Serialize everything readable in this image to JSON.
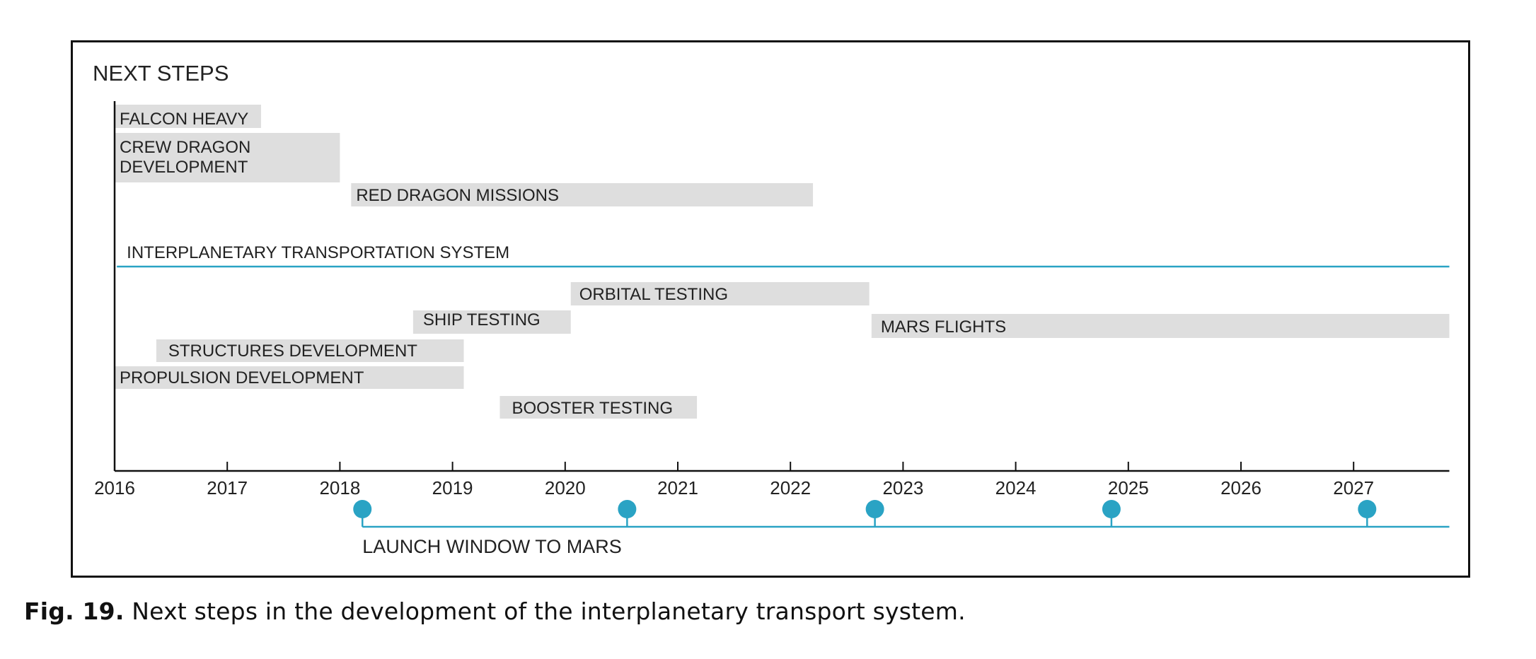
{
  "colors": {
    "bar": "#dedede",
    "accent": "#2aa3c4",
    "axis": "#111111",
    "text": "#222222"
  },
  "chart_data": {
    "type": "gantt",
    "title": "NEXT STEPS",
    "x_axis": {
      "min": 2016,
      "max": 2027.85,
      "ticks": [
        2016,
        2017,
        2018,
        2019,
        2020,
        2021,
        2022,
        2023,
        2024,
        2025,
        2026,
        2027
      ],
      "tick_labels": [
        "2016",
        "2017",
        "2018",
        "2019",
        "2020",
        "2021",
        "2022",
        "2023",
        "2024",
        "2025",
        "2026",
        "2027"
      ]
    },
    "tasks": [
      {
        "label": "FALCON HEAVY",
        "start": 2016.0,
        "end": 2017.3
      },
      {
        "label": "CREW DRAGON DEVELOPMENT",
        "lines": [
          "CREW DRAGON",
          "DEVELOPMENT"
        ],
        "start": 2016.0,
        "end": 2018.0
      },
      {
        "label": "RED DRAGON MISSIONS",
        "start": 2018.1,
        "end": 2022.2
      },
      {
        "label": "ORBITAL TESTING",
        "start": 2020.05,
        "end": 2022.7
      },
      {
        "label": "SHIP TESTING",
        "start": 2018.65,
        "end": 2020.05
      },
      {
        "label": "MARS FLIGHTS",
        "start": 2022.72,
        "end": 2027.85
      },
      {
        "label": "STRUCTURES DEVELOPMENT",
        "start": 2016.37,
        "end": 2019.1
      },
      {
        "label": "PROPULSION DEVELOPMENT",
        "start": 2016.0,
        "end": 2019.1
      },
      {
        "label": "BOOSTER TESTING",
        "start": 2019.42,
        "end": 2021.17
      }
    ],
    "section": {
      "label": "INTERPLANETARY TRANSPORTATION SYSTEM",
      "start": 2016.02,
      "end": 2027.85
    },
    "launch_windows": {
      "label": "LAUNCH WINDOW TO MARS",
      "dates": [
        2018.2,
        2020.55,
        2022.75,
        2024.85,
        2027.12
      ],
      "line_end": 2027.85
    }
  },
  "caption": {
    "label": "Fig. 19.",
    "text": "Next steps in the development of the interplanetary transport system."
  }
}
